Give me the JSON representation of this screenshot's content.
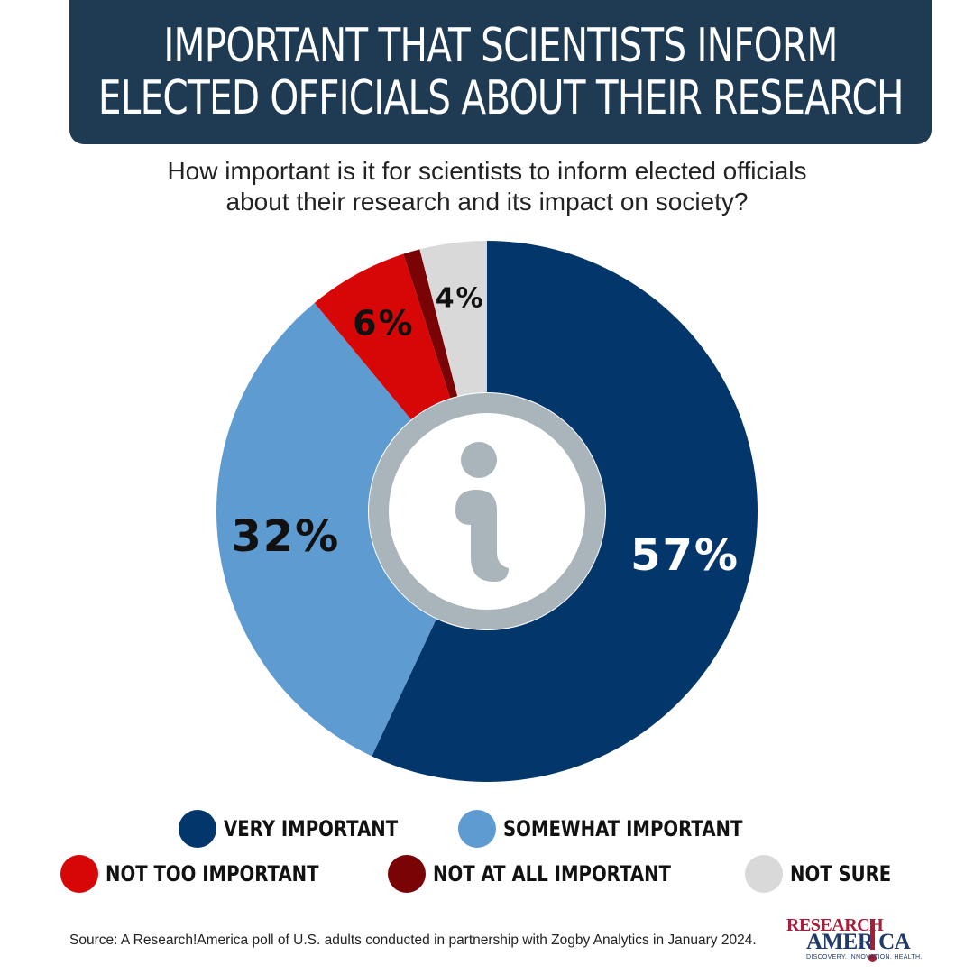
{
  "title": {
    "line1": "IMPORTANT THAT SCIENTISTS INFORM",
    "line2": "ELECTED OFFICIALS ABOUT THEIR RESEARCH"
  },
  "subtitle": {
    "line1": "How important is it for scientists to inform elected officials",
    "line2": "about their research and its impact on society?"
  },
  "chart_data": {
    "type": "pie",
    "variant": "donut",
    "title": "IMPORTANT THAT SCIENTISTS INFORM ELECTED OFFICIALS ABOUT THEIR RESEARCH",
    "subtitle": "How important is it for scientists to inform elected officials about their research and its impact on society?",
    "unit": "%",
    "slices": [
      {
        "name": "VERY IMPORTANT",
        "value": 57,
        "label": "57%",
        "color": "#03376b",
        "label_color": "#ffffff"
      },
      {
        "name": "SOMEWHAT IMPORTANT",
        "value": 32,
        "label": "32%",
        "color": "#5d9bd1",
        "label_color": "#111111"
      },
      {
        "name": "NOT TOO IMPORTANT",
        "value": 6,
        "label": "6%",
        "color": "#d80707",
        "label_color": "#111111"
      },
      {
        "name": "NOT AT ALL IMPORTANT",
        "value": 1,
        "label": "",
        "color": "#7a0306",
        "label_color": "#111111"
      },
      {
        "name": "NOT SURE",
        "value": 4,
        "label": "4%",
        "color": "#d9d9d9",
        "label_color": "#111111"
      }
    ],
    "legend_placement": "bottom",
    "center_icon": "info-icon"
  },
  "legend": {
    "row1": [
      {
        "label": "VERY IMPORTANT",
        "color": "#03376b"
      },
      {
        "label": "SOMEWHAT IMPORTANT",
        "color": "#5d9bd1"
      }
    ],
    "row2": [
      {
        "label": "NOT TOO IMPORTANT",
        "color": "#d80707"
      },
      {
        "label": "NOT AT ALL IMPORTANT",
        "color": "#7a0306"
      },
      {
        "label": "NOT SURE",
        "color": "#d9d9d9"
      }
    ]
  },
  "source": "Source:  A Research!America poll of U.S. adults conducted in partnership with Zogby Analytics in January 2024.",
  "logo": {
    "top": "RESEARCH",
    "bottom": "AMER CA",
    "tagline": "DISCOVERY. INNOVATION. HEALTH."
  },
  "colors": {
    "banner": "#1f3a53",
    "icon": "#a9b4bb"
  }
}
